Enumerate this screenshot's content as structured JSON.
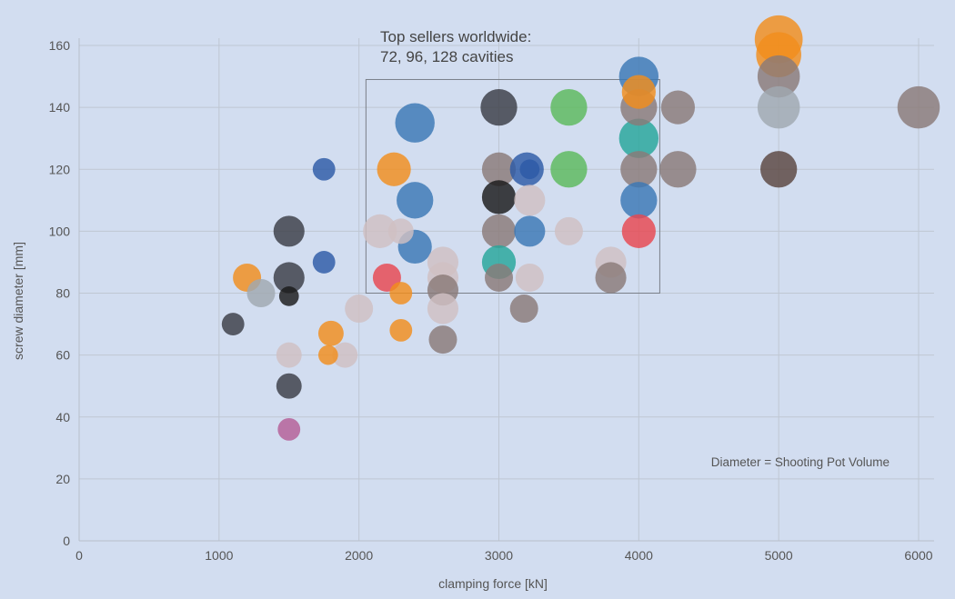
{
  "chart_data": {
    "type": "scatter",
    "subtype": "bubble",
    "title_lines": [
      "Top sellers worldwide:",
      "72, 96, 128 cavities"
    ],
    "xlabel": "clamping force [kN]",
    "ylabel": "screw diameter [mm]",
    "xlim": [
      0,
      6100
    ],
    "ylim": [
      0,
      165
    ],
    "x_ticks": [
      "0",
      "1000",
      "2000",
      "3000",
      "4000",
      "5000",
      "6000"
    ],
    "y_ticks": [
      "0",
      "20",
      "40",
      "60",
      "80",
      "100",
      "120",
      "140",
      "160"
    ],
    "x_tick_values": [
      0,
      1000,
      2000,
      3000,
      4000,
      5000,
      6000
    ],
    "y_tick_values": [
      0,
      20,
      40,
      60,
      80,
      100,
      120,
      140,
      160
    ],
    "grid": true,
    "annotation": "Diameter = Shooting Pot Volume",
    "highlight_region": {
      "x": [
        2050,
        4150
      ],
      "y": [
        80,
        149
      ]
    },
    "colors": {
      "blue": "#3a78b5",
      "navy": "#2d5aa6",
      "orange": "#f28e1c",
      "green": "#5cba5c",
      "teal": "#26a69a",
      "red": "#e8474f",
      "dark": "#3a3d45",
      "black": "#1a1a1a",
      "brown": "#8a7a78",
      "taupe": "#d0c0c2",
      "silver": "#a0a8b0",
      "pink": "#b55e96",
      "darkbrown": "#5a4640"
    },
    "points": [
      {
        "x": 1100,
        "y": 70,
        "size": 8,
        "color": "dark"
      },
      {
        "x": 1200,
        "y": 85,
        "size": 10,
        "color": "orange"
      },
      {
        "x": 1300,
        "y": 80,
        "size": 10,
        "color": "silver"
      },
      {
        "x": 1500,
        "y": 100,
        "size": 11,
        "color": "dark"
      },
      {
        "x": 1500,
        "y": 85,
        "size": 11,
        "color": "dark"
      },
      {
        "x": 1500,
        "y": 79,
        "size": 7,
        "color": "black"
      },
      {
        "x": 1500,
        "y": 60,
        "size": 9,
        "color": "taupe"
      },
      {
        "x": 1500,
        "y": 50,
        "size": 9,
        "color": "dark"
      },
      {
        "x": 1500,
        "y": 36,
        "size": 8,
        "color": "pink"
      },
      {
        "x": 1750,
        "y": 120,
        "size": 8,
        "color": "navy"
      },
      {
        "x": 1750,
        "y": 90,
        "size": 8,
        "color": "navy"
      },
      {
        "x": 1800,
        "y": 67,
        "size": 9,
        "color": "orange"
      },
      {
        "x": 1780,
        "y": 60,
        "size": 7,
        "color": "orange"
      },
      {
        "x": 1900,
        "y": 60,
        "size": 9,
        "color": "taupe"
      },
      {
        "x": 2000,
        "y": 75,
        "size": 10,
        "color": "taupe"
      },
      {
        "x": 2150,
        "y": 100,
        "size": 12,
        "color": "taupe"
      },
      {
        "x": 2250,
        "y": 120,
        "size": 12,
        "color": "orange"
      },
      {
        "x": 2200,
        "y": 85,
        "size": 10,
        "color": "red"
      },
      {
        "x": 2300,
        "y": 80,
        "size": 8,
        "color": "orange"
      },
      {
        "x": 2300,
        "y": 68,
        "size": 8,
        "color": "orange"
      },
      {
        "x": 2400,
        "y": 135,
        "size": 14,
        "color": "blue"
      },
      {
        "x": 2400,
        "y": 110,
        "size": 13,
        "color": "blue"
      },
      {
        "x": 2400,
        "y": 95,
        "size": 12,
        "color": "blue"
      },
      {
        "x": 2300,
        "y": 100,
        "size": 9,
        "color": "taupe"
      },
      {
        "x": 2600,
        "y": 90,
        "size": 11,
        "color": "taupe"
      },
      {
        "x": 2600,
        "y": 85,
        "size": 11,
        "color": "taupe"
      },
      {
        "x": 2600,
        "y": 81,
        "size": 11,
        "color": "brown"
      },
      {
        "x": 2600,
        "y": 75,
        "size": 11,
        "color": "taupe"
      },
      {
        "x": 2600,
        "y": 65,
        "size": 10,
        "color": "brown"
      },
      {
        "x": 3000,
        "y": 140,
        "size": 13,
        "color": "dark"
      },
      {
        "x": 3000,
        "y": 120,
        "size": 12,
        "color": "brown"
      },
      {
        "x": 3000,
        "y": 111,
        "size": 12,
        "color": "black"
      },
      {
        "x": 3000,
        "y": 100,
        "size": 12,
        "color": "brown"
      },
      {
        "x": 3000,
        "y": 90,
        "size": 12,
        "color": "teal"
      },
      {
        "x": 3000,
        "y": 85,
        "size": 10,
        "color": "brown"
      },
      {
        "x": 3200,
        "y": 120,
        "size": 12,
        "color": "navy"
      },
      {
        "x": 3220,
        "y": 120,
        "size": 7,
        "color": "navy"
      },
      {
        "x": 3220,
        "y": 110,
        "size": 11,
        "color": "taupe"
      },
      {
        "x": 3220,
        "y": 100,
        "size": 11,
        "color": "blue"
      },
      {
        "x": 3220,
        "y": 85,
        "size": 10,
        "color": "taupe"
      },
      {
        "x": 3180,
        "y": 75,
        "size": 10,
        "color": "brown"
      },
      {
        "x": 3500,
        "y": 140,
        "size": 13,
        "color": "green"
      },
      {
        "x": 3500,
        "y": 120,
        "size": 13,
        "color": "green"
      },
      {
        "x": 3500,
        "y": 100,
        "size": 10,
        "color": "taupe"
      },
      {
        "x": 3800,
        "y": 90,
        "size": 11,
        "color": "taupe"
      },
      {
        "x": 3800,
        "y": 85,
        "size": 11,
        "color": "brown"
      },
      {
        "x": 4000,
        "y": 150,
        "size": 14,
        "color": "blue"
      },
      {
        "x": 4000,
        "y": 145,
        "size": 12,
        "color": "orange"
      },
      {
        "x": 4000,
        "y": 140,
        "size": 13,
        "color": "brown"
      },
      {
        "x": 4000,
        "y": 130,
        "size": 14,
        "color": "teal"
      },
      {
        "x": 4000,
        "y": 120,
        "size": 13,
        "color": "brown"
      },
      {
        "x": 4000,
        "y": 110,
        "size": 13,
        "color": "blue"
      },
      {
        "x": 4000,
        "y": 100,
        "size": 12,
        "color": "red"
      },
      {
        "x": 4280,
        "y": 140,
        "size": 12,
        "color": "brown"
      },
      {
        "x": 4280,
        "y": 120,
        "size": 13,
        "color": "brown"
      },
      {
        "x": 5000,
        "y": 162,
        "size": 17,
        "color": "orange"
      },
      {
        "x": 5000,
        "y": 157,
        "size": 16,
        "color": "orange"
      },
      {
        "x": 5000,
        "y": 150,
        "size": 15,
        "color": "brown"
      },
      {
        "x": 5000,
        "y": 140,
        "size": 15,
        "color": "silver"
      },
      {
        "x": 5000,
        "y": 120,
        "size": 13,
        "color": "darkbrown"
      },
      {
        "x": 6000,
        "y": 140,
        "size": 15,
        "color": "brown"
      }
    ]
  }
}
